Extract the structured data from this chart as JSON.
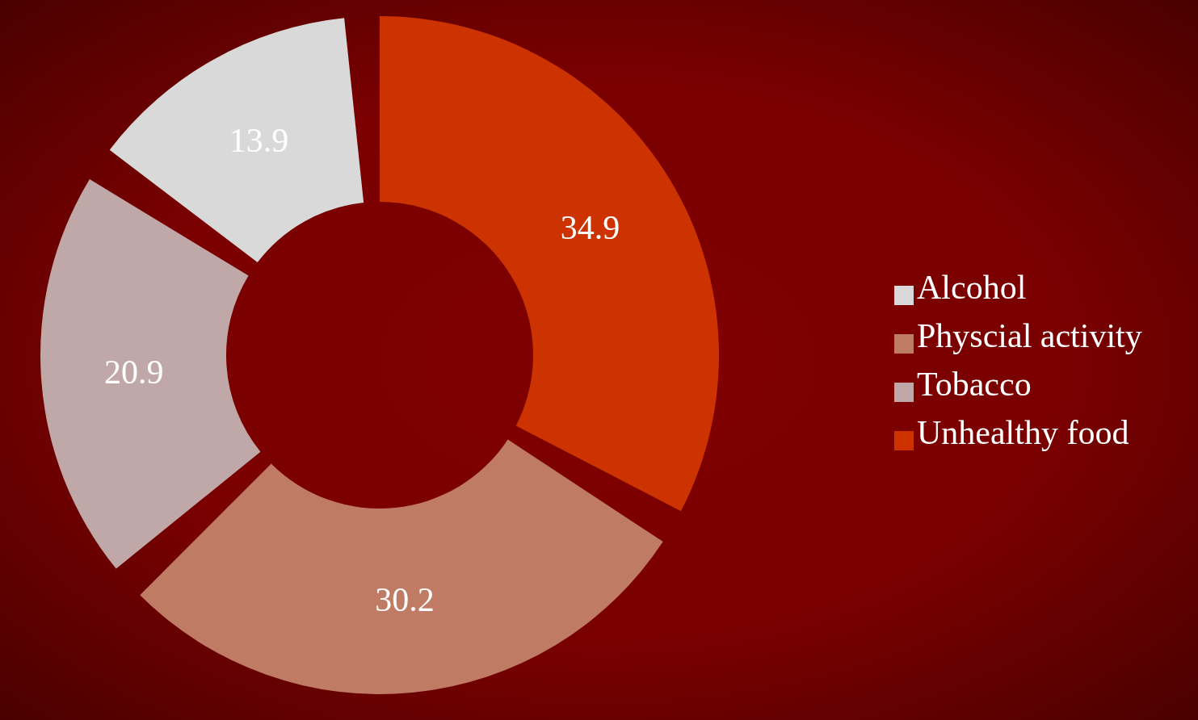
{
  "chart_data": {
    "type": "donut",
    "categories": [
      "Unhealthy food",
      "Physcial activity",
      "Tobacco",
      "Alcohol"
    ],
    "values": [
      34.9,
      30.2,
      20.9,
      13.9
    ],
    "colors": [
      "#cc3300",
      "#bf7b63",
      "#c0a8a8",
      "#d9d9d9"
    ],
    "data_labels": true,
    "legend": "right"
  }
}
